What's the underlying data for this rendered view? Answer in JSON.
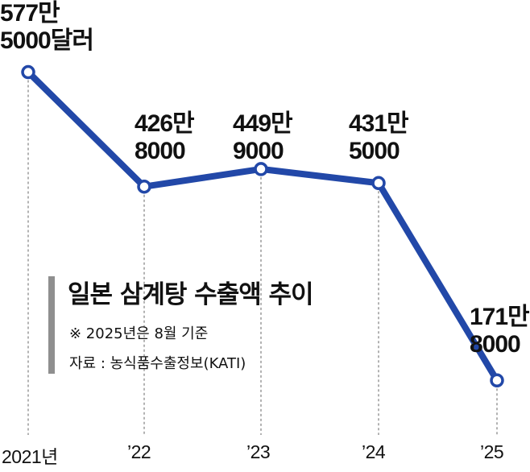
{
  "chart_data": {
    "type": "line",
    "title": "일본 삼계탕 수출액 추이",
    "notes": [
      "※ 2025년은 8월 기준",
      "자료 : 농식품수출정보(KATI)"
    ],
    "categories": [
      "2021년",
      "’22",
      "’23",
      "’24",
      "’25"
    ],
    "values": [
      5775000,
      4268000,
      4499000,
      4315000,
      1718000
    ],
    "data_labels": [
      "577만\n5000달러",
      "426만\n8000",
      "449만\n9000",
      "431만\n5000",
      "171만\n8000"
    ],
    "ylim": [
      1000000,
      6300000
    ],
    "grid": false,
    "colors": {
      "line": "#2248a8",
      "marker_fill": "#ffffff",
      "guide": "#666666"
    }
  }
}
